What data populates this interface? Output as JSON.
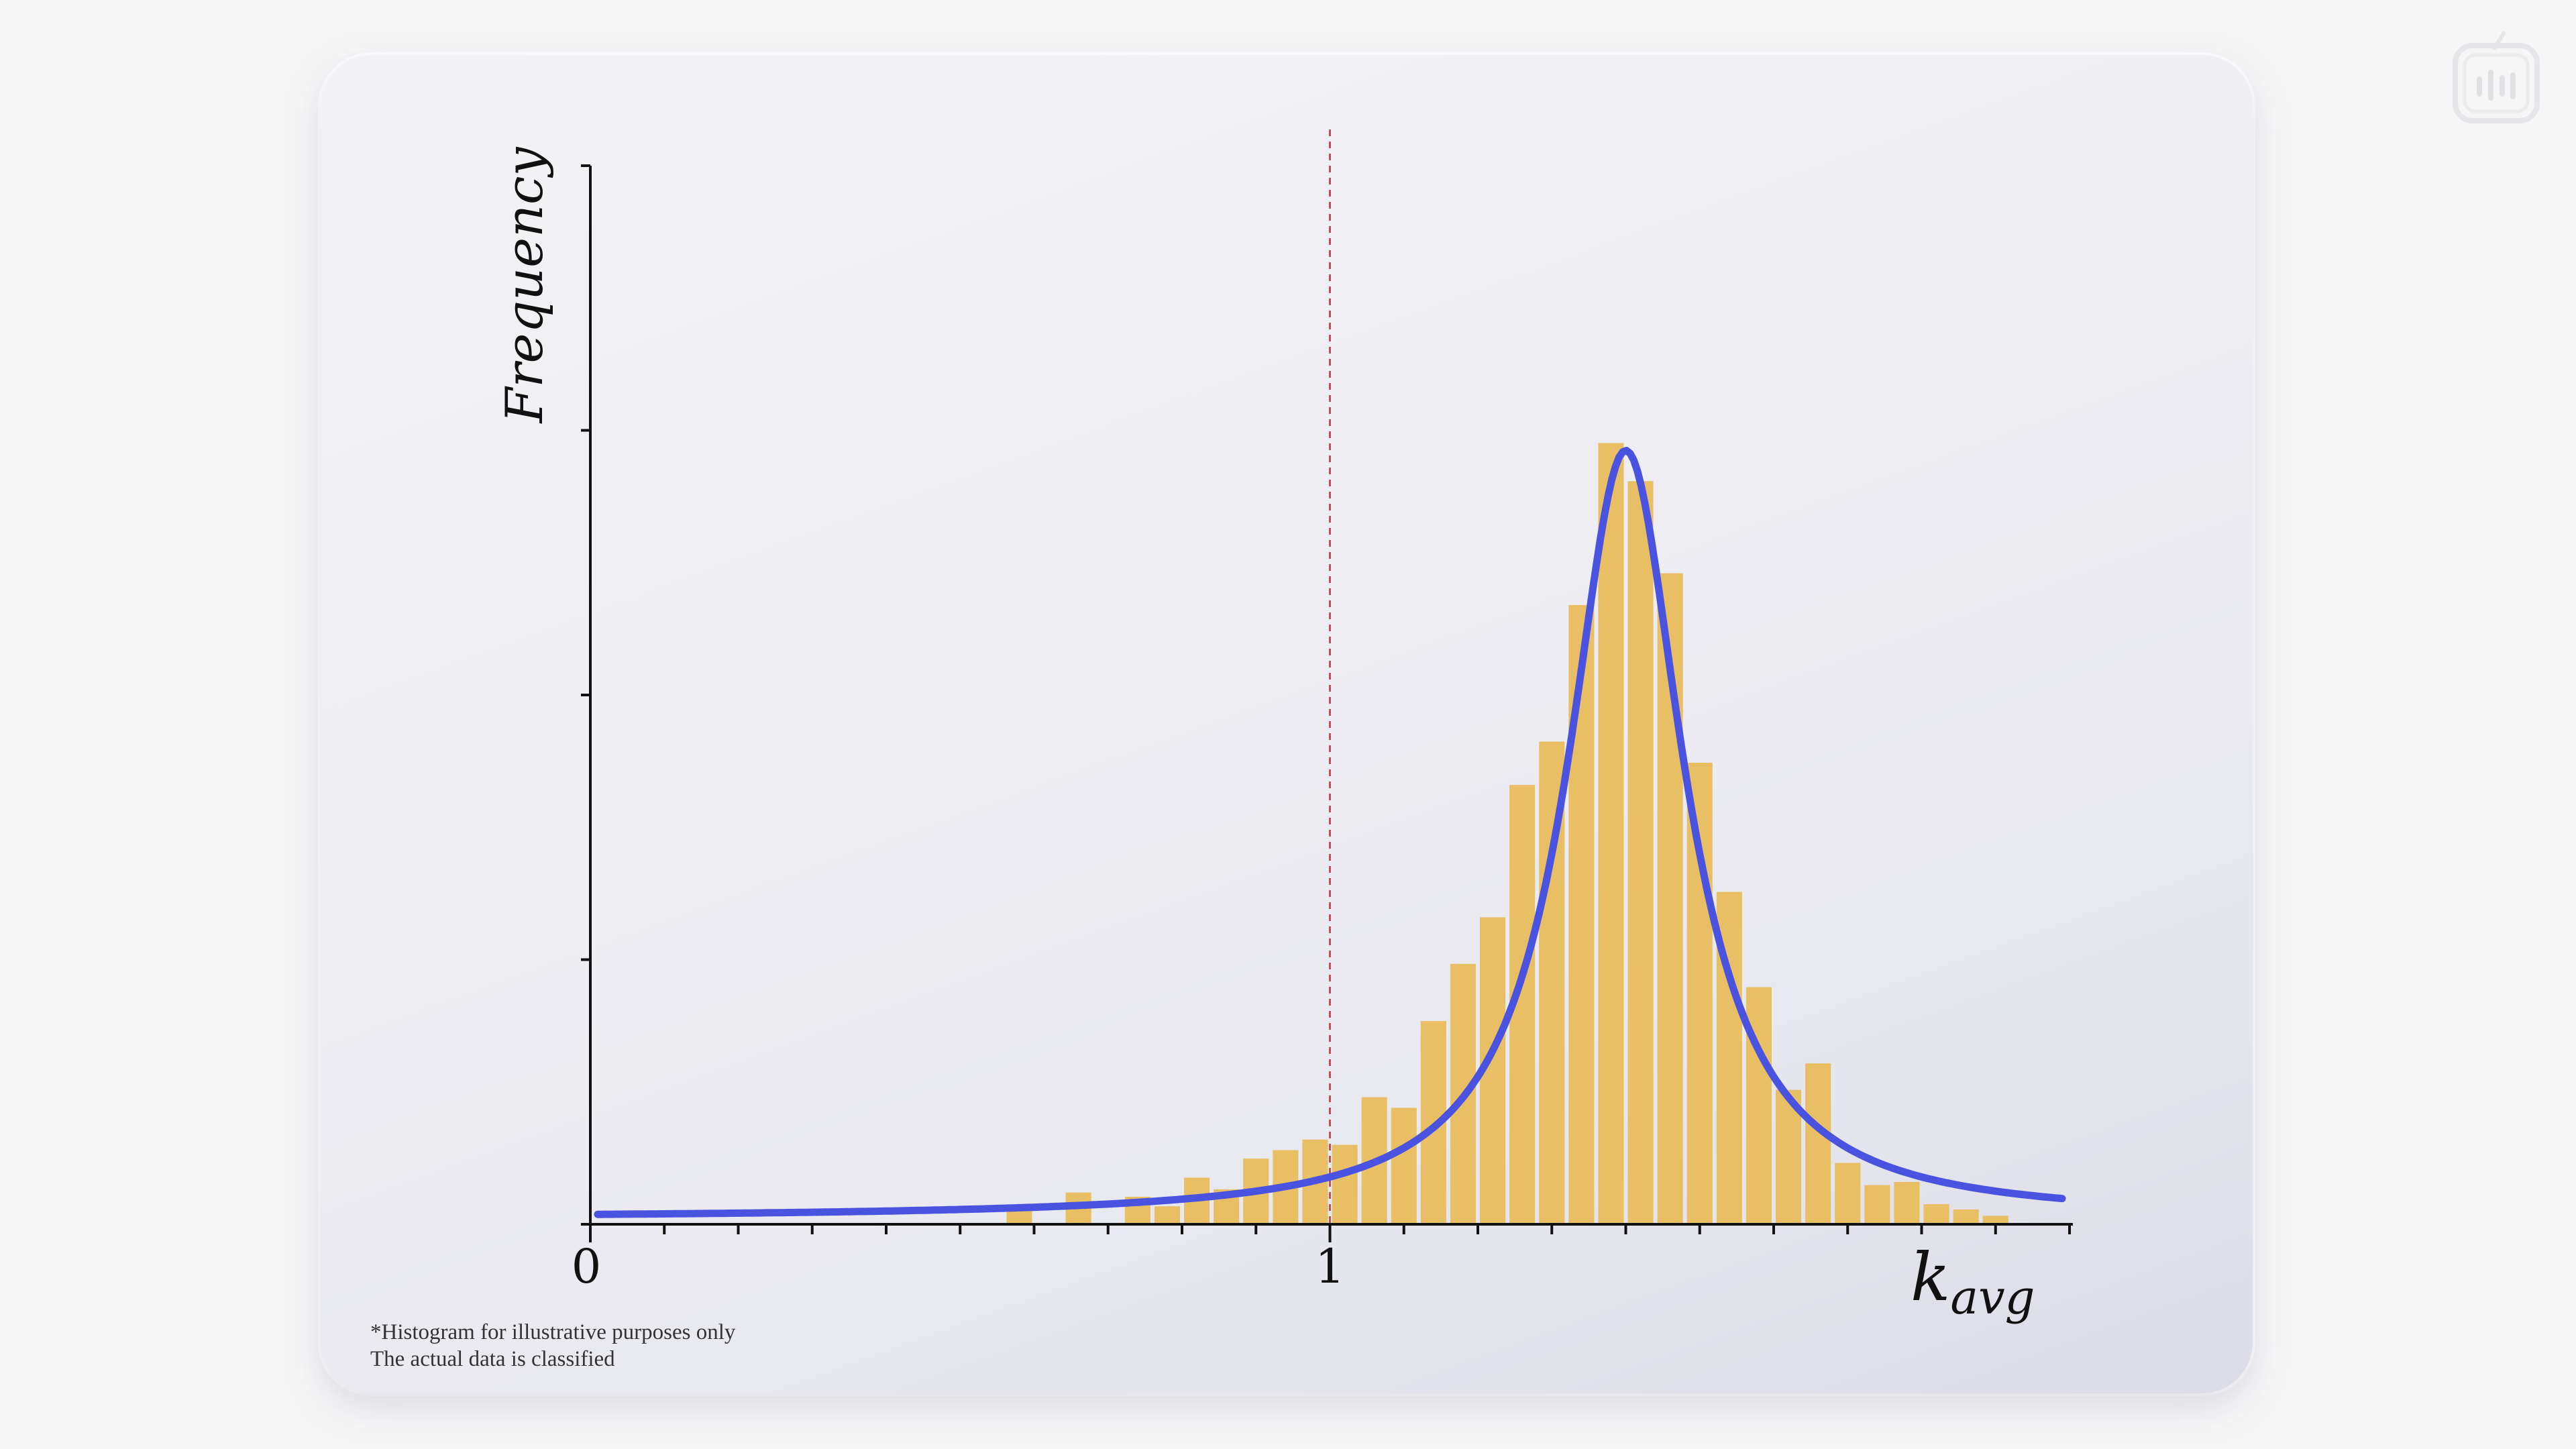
{
  "chart_data": {
    "type": "bar",
    "ylabel": "Frequency",
    "xlabel_main": "k",
    "xlabel_sub": "avg",
    "x_tick_labels": [
      {
        "value": 0,
        "label": "0"
      },
      {
        "value": 1,
        "label": "1"
      }
    ],
    "xlim": [
      0,
      2.0
    ],
    "ylim": [
      0,
      1.0
    ],
    "grid": false,
    "reference_line": {
      "x": 1.0,
      "color": "#c0505a",
      "style": "dashed"
    },
    "bar_color": "#e9bf66",
    "curve_color": "#4a52e0",
    "bin_width": 0.04,
    "bins": [
      {
        "x": 0.58,
        "h": 0.013
      },
      {
        "x": 0.66,
        "h": 0.03
      },
      {
        "x": 0.74,
        "h": 0.026
      },
      {
        "x": 0.78,
        "h": 0.017
      },
      {
        "x": 0.82,
        "h": 0.044
      },
      {
        "x": 0.86,
        "h": 0.033
      },
      {
        "x": 0.9,
        "h": 0.062
      },
      {
        "x": 0.94,
        "h": 0.07
      },
      {
        "x": 0.98,
        "h": 0.08
      },
      {
        "x": 1.02,
        "h": 0.075
      },
      {
        "x": 1.06,
        "h": 0.12
      },
      {
        "x": 1.1,
        "h": 0.11
      },
      {
        "x": 1.14,
        "h": 0.192
      },
      {
        "x": 1.18,
        "h": 0.246
      },
      {
        "x": 1.22,
        "h": 0.29
      },
      {
        "x": 1.26,
        "h": 0.415
      },
      {
        "x": 1.3,
        "h": 0.456
      },
      {
        "x": 1.34,
        "h": 0.585
      },
      {
        "x": 1.38,
        "h": 0.738
      },
      {
        "x": 1.42,
        "h": 0.702
      },
      {
        "x": 1.46,
        "h": 0.615
      },
      {
        "x": 1.5,
        "h": 0.436
      },
      {
        "x": 1.54,
        "h": 0.314
      },
      {
        "x": 1.58,
        "h": 0.224
      },
      {
        "x": 1.62,
        "h": 0.127
      },
      {
        "x": 1.66,
        "h": 0.152
      },
      {
        "x": 1.7,
        "h": 0.058
      },
      {
        "x": 1.74,
        "h": 0.037
      },
      {
        "x": 1.78,
        "h": 0.04
      },
      {
        "x": 1.82,
        "h": 0.019
      },
      {
        "x": 1.86,
        "h": 0.014
      },
      {
        "x": 1.9,
        "h": 0.008
      }
    ],
    "fit_curve": {
      "type": "lorentzian",
      "center": 1.4,
      "gamma": 0.095,
      "peak": 0.725,
      "baseline": 0.006
    }
  },
  "footnote": {
    "line1": "*Histogram for illustrative purposes only",
    "line2": "The actual data is classified"
  },
  "logo": {
    "icon": "tv-icon"
  }
}
